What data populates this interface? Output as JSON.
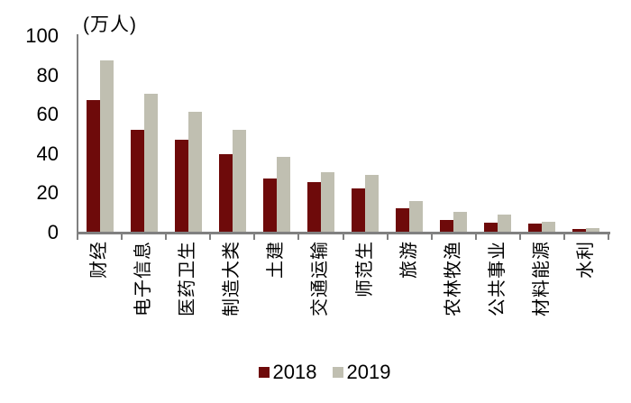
{
  "chart_data": {
    "type": "bar",
    "title": "(万人)",
    "categories": [
      "财经",
      "电子信息",
      "医药卫生",
      "制造大类",
      "土建",
      "交通运输",
      "师范生",
      "旅游",
      "农林牧渔",
      "公共事业",
      "材料能源",
      "水利"
    ],
    "series": [
      {
        "name": "2018",
        "color": "#6E0A0A",
        "values": [
          67,
          52,
          47,
          39.5,
          27,
          25,
          22,
          12,
          6,
          4.5,
          4,
          1.5
        ]
      },
      {
        "name": "2019",
        "color": "#C0BFB1",
        "values": [
          87,
          70,
          61,
          52,
          38,
          30.5,
          29,
          15.5,
          10,
          8.5,
          5,
          2
        ]
      }
    ],
    "ylim": [
      0,
      100
    ],
    "yticks": [
      0,
      20,
      40,
      60,
      80,
      100
    ],
    "grid": false,
    "legend_position": "bottom",
    "colors": {
      "axis": "#808080",
      "text": "#000000",
      "background": "#FFFFFF"
    }
  }
}
